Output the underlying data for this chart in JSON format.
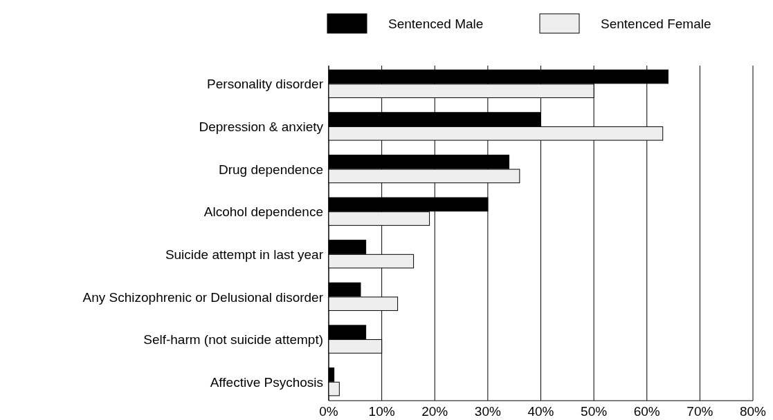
{
  "chart_data": {
    "type": "bar",
    "orientation": "horizontal",
    "categories": [
      "Personality disorder",
      "Depression & anxiety",
      "Drug dependence",
      "Alcohol dependence",
      "Suicide attempt in last year",
      "Any Schizophrenic or Delusional disorder",
      "Self-harm (not suicide attempt)",
      "Affective Psychosis"
    ],
    "series": [
      {
        "name": "Sentenced Male",
        "color": "#000000",
        "values": [
          64,
          40,
          34,
          30,
          7,
          6,
          7,
          1
        ]
      },
      {
        "name": "Sentenced Female",
        "color": "#eeeeee",
        "values": [
          50,
          63,
          36,
          19,
          16,
          13,
          10,
          2
        ]
      }
    ],
    "xlim": [
      0,
      80
    ],
    "xticks": [
      {
        "value": 0,
        "label": "0%"
      },
      {
        "value": 10,
        "label": "10%"
      },
      {
        "value": 20,
        "label": "20%"
      },
      {
        "value": 30,
        "label": "30%"
      },
      {
        "value": 40,
        "label": "40%"
      },
      {
        "value": 50,
        "label": "50%"
      },
      {
        "value": 60,
        "label": "60%"
      },
      {
        "value": 70,
        "label": "70%"
      },
      {
        "value": 80,
        "label": "80%"
      }
    ],
    "grid": "x",
    "legend": "top"
  }
}
